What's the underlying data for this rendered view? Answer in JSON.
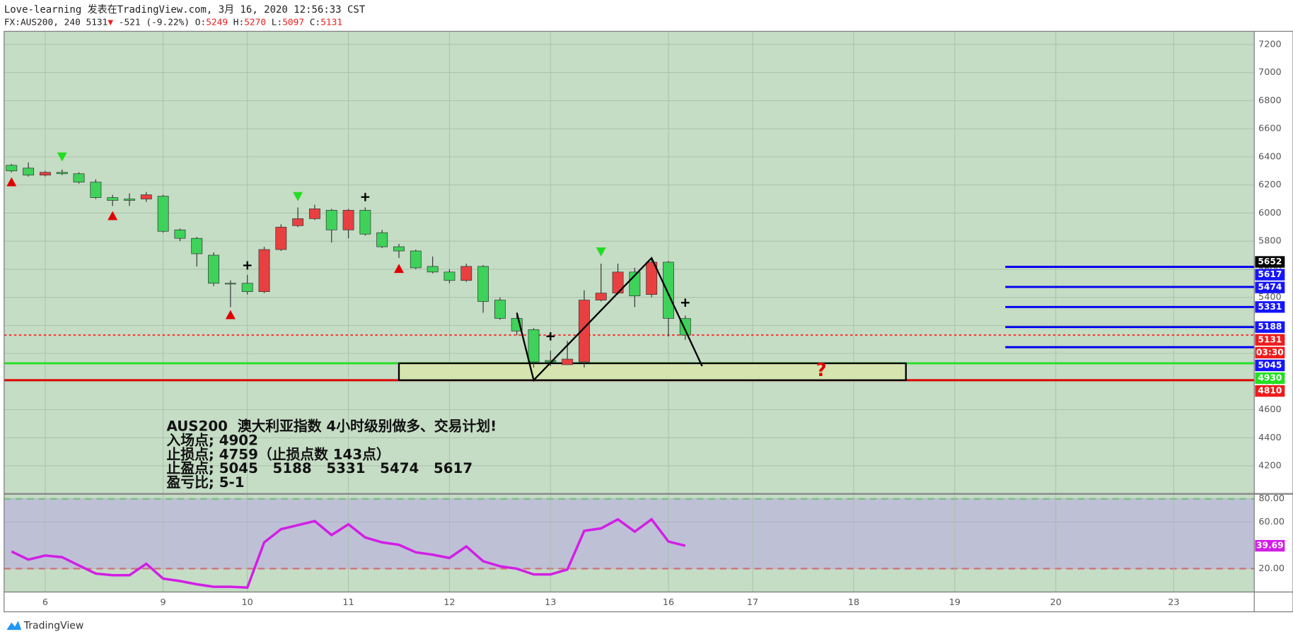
{
  "header": {
    "line1": "Love-learning 发表在TradingView.com, 3月 16, 2020 12:56:33 CST",
    "symbol": "FX:AUS200, 240",
    "last": "5131",
    "arrow": "▼",
    "change": "-521 (-9.22%)",
    "ohlc": [
      {
        "label": "O:",
        "value": "5249"
      },
      {
        "label": "H:",
        "value": "5270"
      },
      {
        "label": "L:",
        "value": "5097"
      },
      {
        "label": "C:",
        "value": "5131"
      }
    ]
  },
  "chart_data": {
    "type": "candlestick",
    "up_color": "#e84040",
    "down_color": "#3ed25a",
    "grid": true,
    "xlim": [
      -0.44,
      73.78
    ],
    "xticks": [
      {
        "value": 2,
        "label": "6"
      },
      {
        "value": 9,
        "label": "9"
      },
      {
        "value": 14,
        "label": "10"
      },
      {
        "value": 20,
        "label": "11"
      },
      {
        "value": 26,
        "label": "12"
      },
      {
        "value": 32,
        "label": "13"
      },
      {
        "value": 39,
        "label": "16"
      },
      {
        "value": 44,
        "label": "17"
      },
      {
        "value": 50,
        "label": "18"
      },
      {
        "value": 56,
        "label": "19"
      },
      {
        "value": 62,
        "label": "20"
      },
      {
        "value": 69,
        "label": "23"
      }
    ],
    "ylim": [
      4006,
      7294
    ],
    "yticks": [
      4200,
      4400,
      4600,
      4800,
      5000,
      5200,
      5400,
      5600,
      5800,
      6000,
      6200,
      6400,
      6600,
      6800,
      7000,
      7200
    ],
    "open": [
      6340,
      6320,
      6270,
      6290,
      6280,
      6220,
      6110,
      6100,
      6100,
      6120,
      5880,
      5820,
      5700,
      5500,
      5500,
      5440,
      5740,
      5910,
      5960,
      6020,
      5880,
      6020,
      5860,
      5760,
      5730,
      5620,
      5580,
      5520,
      5620,
      5380,
      5250,
      5170,
      4950,
      4920,
      4940,
      5380,
      5430,
      5580,
      5420,
      5650,
      5249
    ],
    "high": [
      6350,
      6360,
      6300,
      6310,
      6290,
      6240,
      6130,
      6140,
      6150,
      6130,
      5890,
      5830,
      5720,
      5520,
      5560,
      5760,
      5920,
      6040,
      6060,
      6030,
      6030,
      6040,
      5880,
      5780,
      5740,
      5690,
      5600,
      5640,
      5630,
      5400,
      5270,
      5180,
      5020,
      5090,
      5450,
      5640,
      5640,
      5610,
      5670,
      5660,
      5270
    ],
    "low": [
      6290,
      6260,
      6260,
      6270,
      6210,
      6100,
      6050,
      6050,
      6080,
      5860,
      5800,
      5620,
      5480,
      5330,
      5420,
      5430,
      5730,
      5900,
      5950,
      5790,
      5820,
      5840,
      5750,
      5680,
      5600,
      5570,
      5500,
      5510,
      5290,
      5240,
      5130,
      4900,
      4910,
      4920,
      4900,
      5370,
      5420,
      5330,
      5400,
      5120,
      5097
    ],
    "close": [
      6300,
      6270,
      6290,
      6280,
      6220,
      6110,
      6090,
      6090,
      6130,
      5870,
      5820,
      5710,
      5500,
      5495,
      5440,
      5740,
      5900,
      5960,
      6030,
      5880,
      6020,
      5850,
      5760,
      5730,
      5610,
      5580,
      5520,
      5620,
      5370,
      5250,
      5160,
      4940,
      4940,
      4960,
      5380,
      5430,
      5580,
      5410,
      5650,
      5250,
      5131
    ],
    "markers": [
      {
        "shape": "up",
        "color": "#e00000",
        "x": 0,
        "y": 6220
      },
      {
        "shape": "up",
        "color": "#e00000",
        "x": 6,
        "y": 5979
      },
      {
        "shape": "up",
        "color": "#e00000",
        "x": 13,
        "y": 5274
      },
      {
        "shape": "up",
        "color": "#e00000",
        "x": 23,
        "y": 5603
      },
      {
        "shape": "down",
        "color": "#22dd22",
        "x": 3,
        "y": 6402
      },
      {
        "shape": "down",
        "color": "#22dd22",
        "x": 17,
        "y": 6120
      },
      {
        "shape": "down",
        "color": "#22dd22",
        "x": 35,
        "y": 5726
      },
      {
        "shape": "cross",
        "color": "#000000",
        "x": 14,
        "y": 5627
      },
      {
        "shape": "cross",
        "color": "#000000",
        "x": 21,
        "y": 6114
      },
      {
        "shape": "cross",
        "color": "#000000",
        "x": 32,
        "y": 5122
      },
      {
        "shape": "cross",
        "color": "#000000",
        "x": 40,
        "y": 5362
      }
    ],
    "pattern": {
      "x": [
        30,
        31,
        38,
        41
      ],
      "y": [
        5290,
        4810,
        5680,
        4910
      ]
    },
    "zone": {
      "x": [
        23,
        53.1
      ],
      "y": [
        4930,
        4810
      ]
    },
    "levels": [
      {
        "value": 5617,
        "color": "#0000ee",
        "from": 59
      },
      {
        "value": 5474,
        "color": "#0000ee",
        "from": 59
      },
      {
        "value": 5331,
        "color": "#0000ee",
        "from": 59
      },
      {
        "value": 5188,
        "color": "#0000ee",
        "from": 59
      },
      {
        "value": 5045,
        "color": "#0000ee",
        "from": 59
      },
      {
        "value": 5131,
        "color": "#ff2020",
        "style": "dotted"
      },
      {
        "value": 4930,
        "color": "#22e022"
      },
      {
        "value": 4810,
        "color": "#e00000"
      }
    ],
    "price_tags": [
      {
        "value": 5652,
        "color": "#000000"
      },
      {
        "value": 5617,
        "color": "#1515ff"
      },
      {
        "value": 5474,
        "color": "#1515ff"
      },
      {
        "value": 5331,
        "color": "#1515ff"
      },
      {
        "value": 5188,
        "color": "#1515ff"
      },
      {
        "value": 5131,
        "color": "#ee1c1c"
      },
      {
        "label": "03:30",
        "color": "#ee1c1c"
      },
      {
        "value": 5045,
        "color": "#1515ff"
      },
      {
        "value": 4930,
        "color": "#22e022"
      },
      {
        "value": 4810,
        "color": "#ee1c1c"
      }
    ],
    "question": "?",
    "notes": [
      "AUS200  澳大利亚指数 4小时级别做多、交易计划!",
      "入场点; 4902",
      "止损点; 4759（止损点数 143点）",
      "止盈点; 5045   5188   5331   5474   5617",
      "盈亏比; 5-1"
    ],
    "indicator": {
      "type": "line",
      "color": "#d21ee6",
      "ylim": [
        0,
        83.5
      ],
      "yticks": [
        {
          "value": 20,
          "label": "20.00"
        },
        {
          "value": 60,
          "label": "60.00"
        },
        {
          "value": 80,
          "label": "80.00"
        }
      ],
      "bands": [
        80,
        20
      ],
      "values": [
        34.8,
        27.8,
        31.3,
        29.9,
        22.8,
        15.8,
        14.4,
        14.4,
        24.2,
        11.5,
        9.4,
        6.6,
        4.5,
        4.5,
        3.8,
        42.6,
        53.9,
        57.4,
        60.9,
        48.9,
        58.1,
        46.8,
        42.6,
        40.5,
        34.1,
        32,
        29.2,
        39.1,
        26.4,
        22.1,
        20,
        15.1,
        15.1,
        19.3,
        52.5,
        54.6,
        62.4,
        51.8,
        62.4,
        43.3,
        39.69
      ]
    }
  },
  "footer": {
    "brand": "TradingView"
  }
}
